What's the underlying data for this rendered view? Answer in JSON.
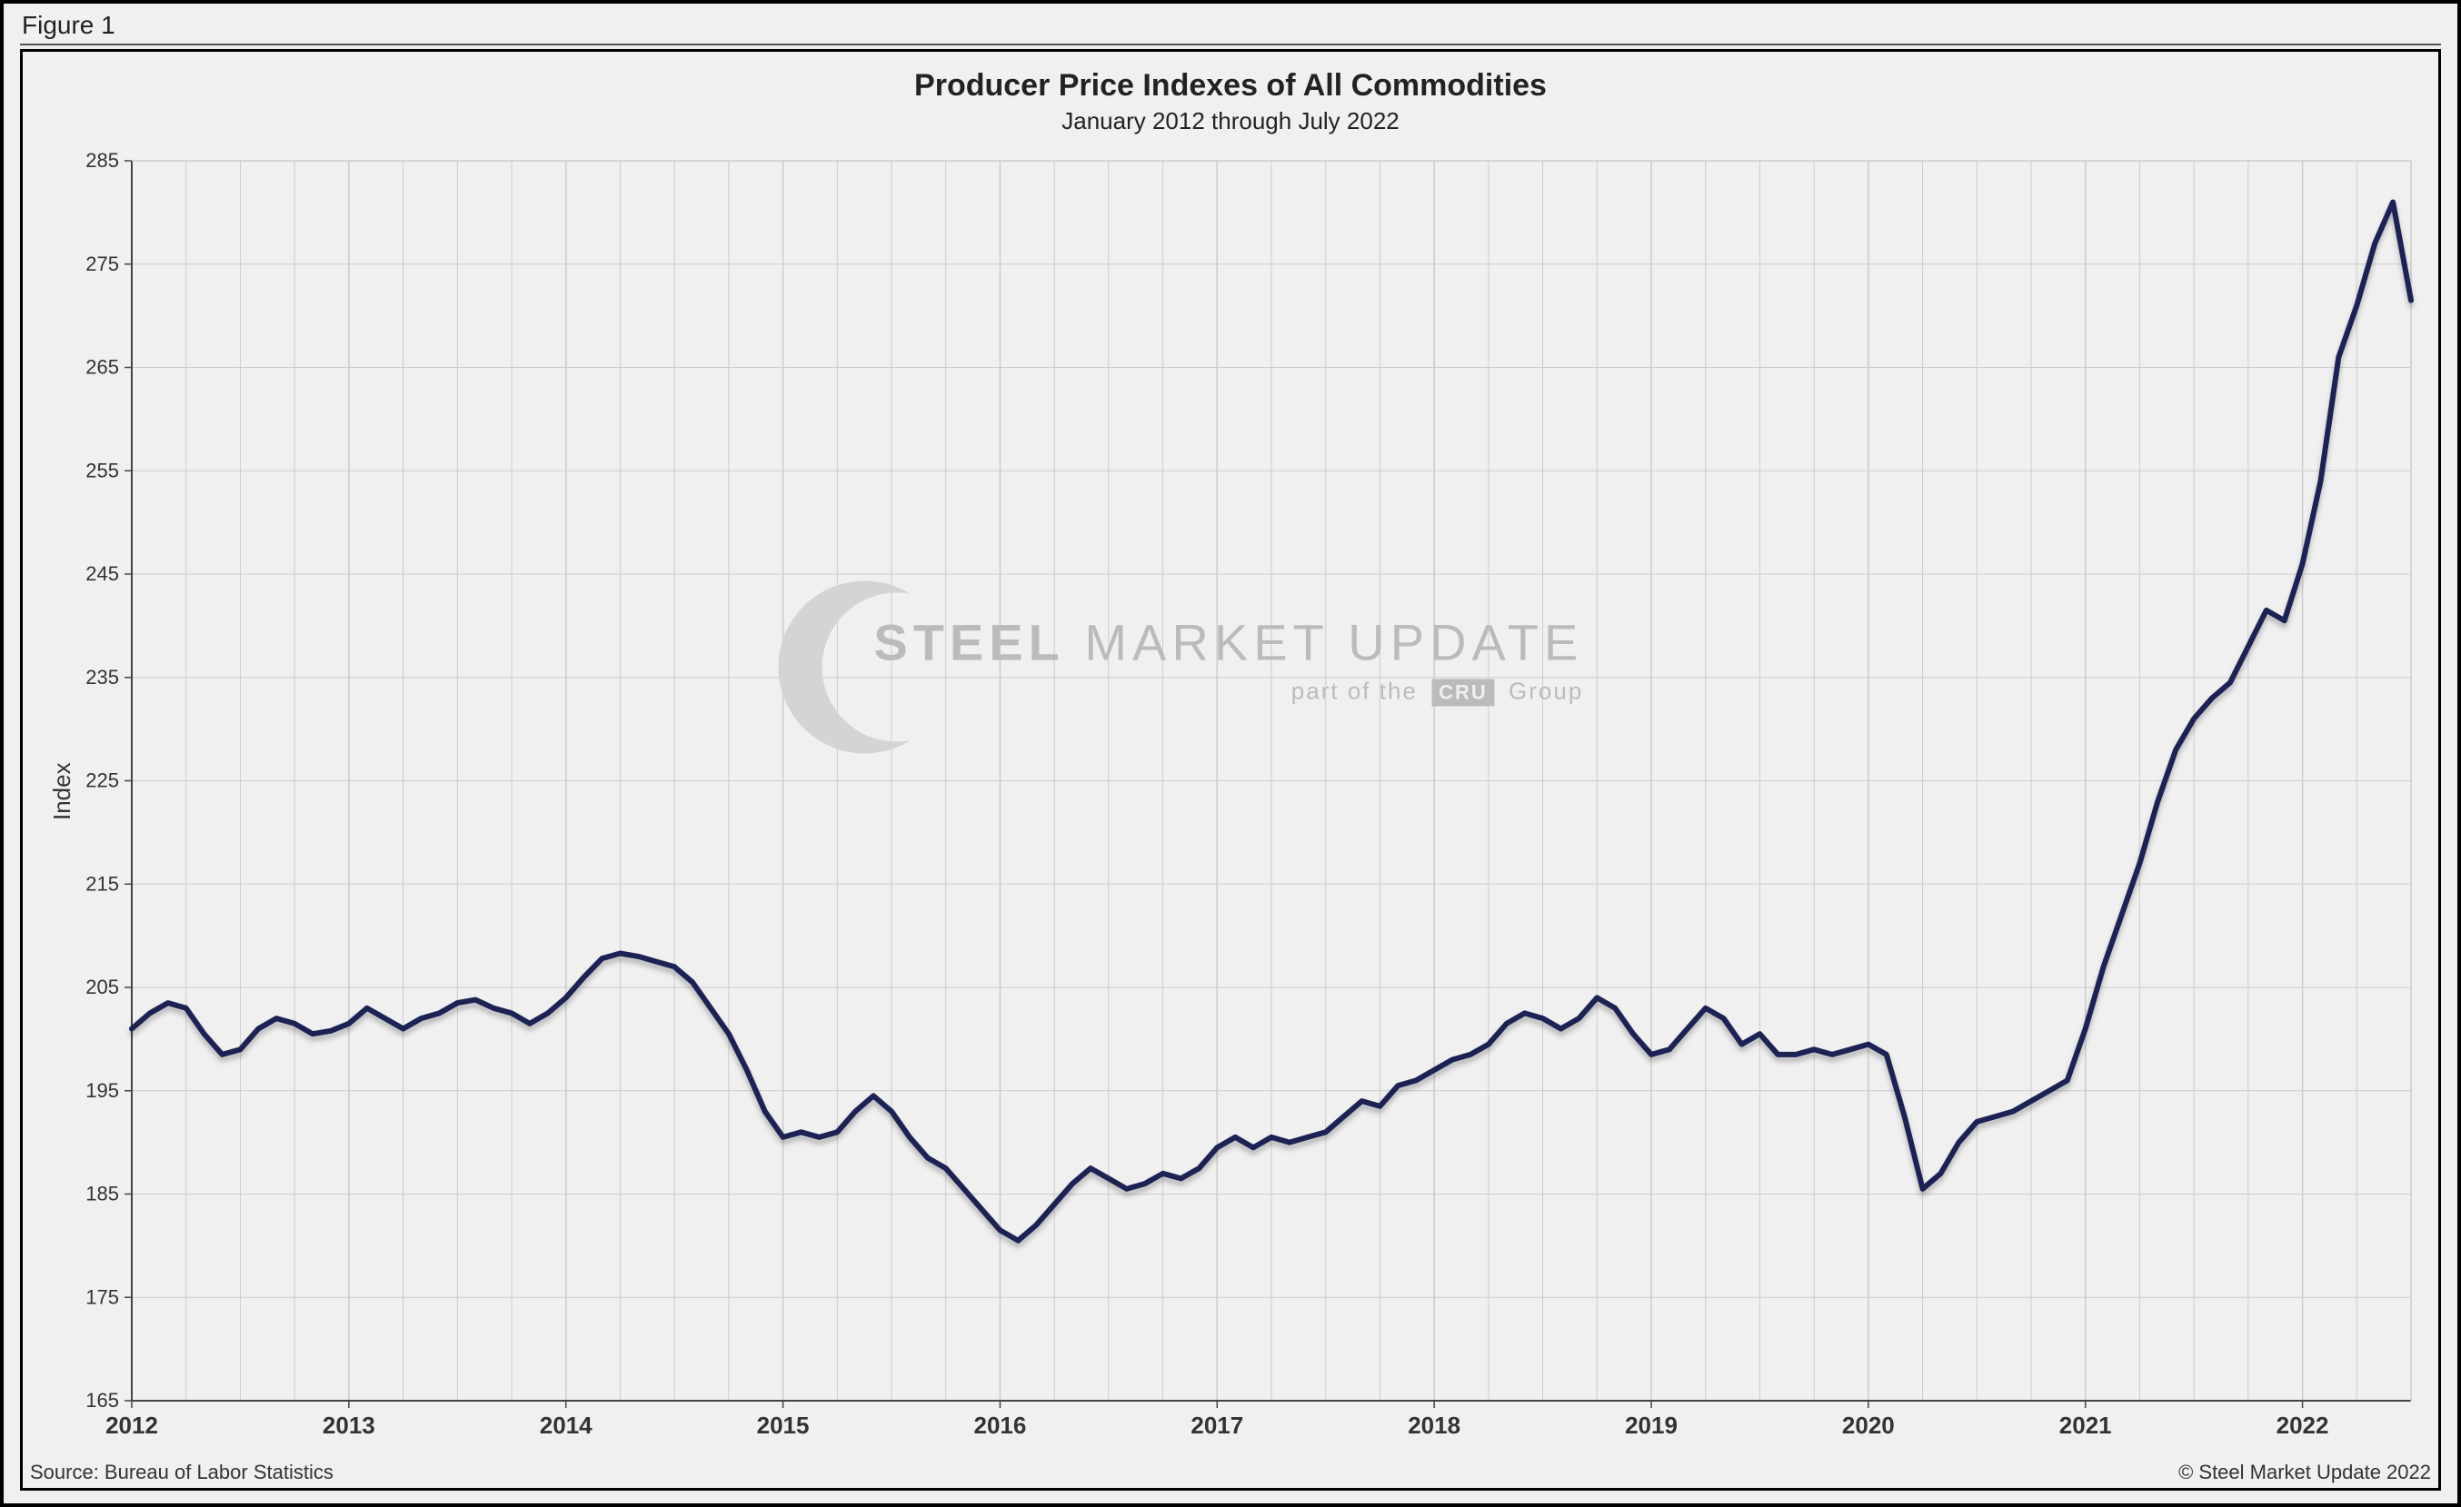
{
  "figure_label": "Figure 1",
  "chart": {
    "type": "line",
    "title": "Producer Price Indexes of All Commodities",
    "subtitle": "January 2012 through July 2022",
    "title_fontsize": 34,
    "subtitle_fontsize": 26,
    "ylabel": "Index",
    "ylabel_fontsize": 26,
    "background_color": "#f0f0f0",
    "plot_background_color": "#f0f0f0",
    "grid_color": "#cccccc",
    "axis_color": "#444444",
    "tick_fontsize": 22,
    "xtick_fontsize": 26,
    "tick_color": "#333333",
    "line_color": "#1a2352",
    "line_width": 6,
    "shadow_color": "rgba(0,0,0,0.25)",
    "x_start_year": 2012,
    "x_start_month": 1,
    "x_end_year": 2022,
    "x_end_month": 7,
    "xticks_years": [
      2012,
      2013,
      2014,
      2015,
      2016,
      2017,
      2018,
      2019,
      2020,
      2021,
      2022
    ],
    "ylim": [
      165,
      285
    ],
    "ytick_step": 10,
    "yticks": [
      165,
      175,
      185,
      195,
      205,
      215,
      225,
      235,
      245,
      255,
      265,
      275,
      285
    ],
    "minor_grid_per_year": 4,
    "values": [
      201.0,
      202.5,
      203.5,
      203.0,
      200.5,
      198.5,
      199.0,
      201.0,
      202.0,
      201.5,
      200.5,
      200.8,
      201.5,
      203.0,
      202.0,
      201.0,
      202.0,
      202.5,
      203.5,
      203.8,
      203.0,
      202.5,
      201.5,
      202.5,
      204.0,
      206.0,
      207.8,
      208.3,
      208.0,
      207.5,
      207.0,
      205.5,
      203.0,
      200.5,
      197.0,
      193.0,
      190.5,
      191.0,
      190.5,
      191.0,
      193.0,
      194.5,
      193.0,
      190.5,
      188.5,
      187.5,
      185.5,
      183.5,
      181.5,
      180.5,
      182.0,
      184.0,
      186.0,
      187.5,
      186.5,
      185.5,
      186.0,
      187.0,
      186.5,
      187.5,
      189.5,
      190.5,
      189.5,
      190.5,
      190.0,
      190.5,
      191.0,
      192.5,
      194.0,
      193.5,
      195.5,
      196.0,
      197.0,
      198.0,
      198.5,
      199.5,
      201.5,
      202.5,
      202.0,
      201.0,
      202.0,
      204.0,
      203.0,
      200.5,
      198.5,
      199.0,
      201.0,
      203.0,
      202.0,
      199.5,
      200.5,
      198.5,
      198.5,
      199.0,
      198.5,
      199.0,
      199.5,
      198.5,
      192.5,
      185.5,
      187.0,
      190.0,
      192.0,
      192.5,
      193.0,
      194.0,
      195.0,
      196.0,
      201.0,
      207.0,
      212.0,
      217.0,
      223.0,
      228.0,
      231.0,
      233.0,
      234.5,
      238.0,
      241.5,
      240.5,
      246.0,
      254.0,
      266.0,
      271.0,
      277.0,
      281.0,
      271.5
    ]
  },
  "watermark": {
    "line1_bold": "STEEL",
    "line1_rest": "MARKET UPDATE",
    "line2_prefix": "part of the",
    "line2_badge": "CRU",
    "line2_suffix": "Group",
    "color": "#bbbbbb"
  },
  "footer": {
    "source": "Source: Bureau of Labor Statistics",
    "copyright": "© Steel Market Update 2022",
    "fontsize": 22
  },
  "frame": {
    "outer_border_color": "#000000",
    "page_background": "#f0f0f0"
  }
}
